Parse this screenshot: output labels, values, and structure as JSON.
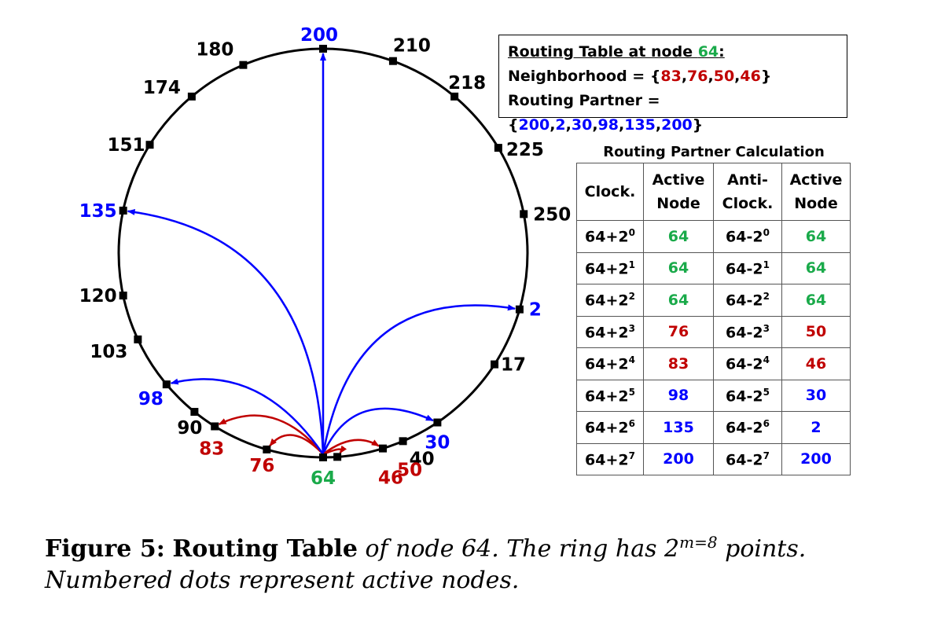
{
  "colors": {
    "green": "#1aaa4a",
    "red": "#c00000",
    "blue": "#0000ff",
    "black": "#000000"
  },
  "ring_nodes": [
    {
      "label": "200",
      "color": "blue"
    },
    {
      "label": "210",
      "color": "black"
    },
    {
      "label": "218",
      "color": "black"
    },
    {
      "label": "225",
      "color": "black"
    },
    {
      "label": "250",
      "color": "black"
    },
    {
      "label": "2",
      "color": "blue"
    },
    {
      "label": "17",
      "color": "black"
    },
    {
      "label": "30",
      "color": "blue"
    },
    {
      "label": "40",
      "color": "black"
    },
    {
      "label": "46",
      "color": "red"
    },
    {
      "label": "50",
      "color": "red"
    },
    {
      "label": "64",
      "color": "green"
    },
    {
      "label": "76",
      "color": "red"
    },
    {
      "label": "83",
      "color": "red"
    },
    {
      "label": "90",
      "color": "black"
    },
    {
      "label": "98",
      "color": "blue"
    },
    {
      "label": "103",
      "color": "black"
    },
    {
      "label": "120",
      "color": "black"
    },
    {
      "label": "135",
      "color": "blue"
    },
    {
      "label": "151",
      "color": "black"
    },
    {
      "label": "174",
      "color": "black"
    },
    {
      "label": "180",
      "color": "black"
    }
  ],
  "arrows": [
    {
      "to": "200",
      "color": "blue"
    },
    {
      "to": "2",
      "color": "blue"
    },
    {
      "to": "30",
      "color": "blue"
    },
    {
      "to": "46",
      "color": "red"
    },
    {
      "to": "50",
      "color": "red"
    },
    {
      "to": "76",
      "color": "red"
    },
    {
      "to": "83",
      "color": "red"
    },
    {
      "to": "98",
      "color": "blue"
    },
    {
      "to": "135",
      "color": "blue"
    }
  ],
  "routing_table": {
    "title_prefix": "Routing Table at node ",
    "title_node": "64",
    "title_suffix": ":",
    "neighborhood_prefix": "Neighborhood = {",
    "neighborhood": [
      "83",
      "76",
      "50",
      "46"
    ],
    "neighborhood_suffix": "}",
    "partner_prefix": "Routing Partner = {",
    "partners": [
      "200",
      "2",
      "30",
      "98",
      "135",
      "200"
    ],
    "partner_suffix": "}"
  },
  "calc": {
    "title": "Routing Partner Calculation",
    "headers": [
      {
        "line1": "Clock.",
        "line2": ""
      },
      {
        "line1": "Active",
        "line2": "Node"
      },
      {
        "line1": "Anti-",
        "line2": "Clock."
      },
      {
        "line1": "Active",
        "line2": "Node"
      }
    ],
    "rows": [
      {
        "cw_base": "64+2",
        "cw_exp": "0",
        "cw_node": "64",
        "cw_color": "green",
        "acw_base": "64-2",
        "acw_exp": "0",
        "acw_node": "64",
        "acw_color": "green"
      },
      {
        "cw_base": "64+2",
        "cw_exp": "1",
        "cw_node": "64",
        "cw_color": "green",
        "acw_base": "64-2",
        "acw_exp": "1",
        "acw_node": "64",
        "acw_color": "green"
      },
      {
        "cw_base": "64+2",
        "cw_exp": "2",
        "cw_node": "64",
        "cw_color": "green",
        "acw_base": "64-2",
        "acw_exp": "2",
        "acw_node": "64",
        "acw_color": "green"
      },
      {
        "cw_base": "64+2",
        "cw_exp": "3",
        "cw_node": "76",
        "cw_color": "red",
        "acw_base": "64-2",
        "acw_exp": "3",
        "acw_node": "50",
        "acw_color": "red"
      },
      {
        "cw_base": "64+2",
        "cw_exp": "4",
        "cw_node": "83",
        "cw_color": "red",
        "acw_base": "64-2",
        "acw_exp": "4",
        "acw_node": "46",
        "acw_color": "red"
      },
      {
        "cw_base": "64+2",
        "cw_exp": "5",
        "cw_node": "98",
        "cw_color": "blue",
        "acw_base": "64-2",
        "acw_exp": "5",
        "acw_node": "30",
        "acw_color": "blue"
      },
      {
        "cw_base": "64+2",
        "cw_exp": "6",
        "cw_node": "135",
        "cw_color": "blue",
        "acw_base": "64-2",
        "acw_exp": "6",
        "acw_node": "2",
        "acw_color": "blue"
      },
      {
        "cw_base": "64+2",
        "cw_exp": "7",
        "cw_node": "200",
        "cw_color": "blue",
        "acw_base": "64-2",
        "acw_exp": "7",
        "acw_node": "200",
        "acw_color": "blue"
      }
    ]
  },
  "caption": {
    "fig_label": "Figure 5:",
    "bold_title": "Routing Table",
    "italic_part1": "of node 64. The ring has 2",
    "sup": "m=8",
    "italic_part2": " points. Numbered dots represent active nodes."
  }
}
